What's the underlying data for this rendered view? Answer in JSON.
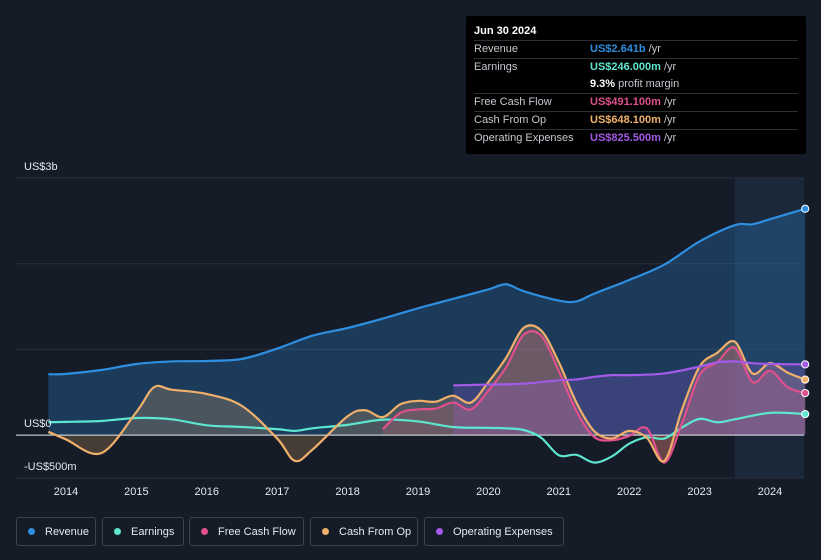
{
  "tooltip": {
    "date": "Jun 30 2024",
    "rows": [
      {
        "label": "Revenue",
        "value": "US$2.641b",
        "unit": "/yr",
        "color": "#2e8fe0"
      },
      {
        "label": "Earnings",
        "value": "US$246.000m",
        "unit": "/yr",
        "color": "#5ee6cf"
      },
      {
        "label": "",
        "value": "9.3%",
        "unit": "profit margin",
        "color": "#ffffff"
      },
      {
        "label": "Free Cash Flow",
        "value": "US$491.100m",
        "unit": "/yr",
        "color": "#e0508c"
      },
      {
        "label": "Cash From Op",
        "value": "US$648.100m",
        "unit": "/yr",
        "color": "#f0b06c"
      },
      {
        "label": "Operating Expenses",
        "value": "US$825.500m",
        "unit": "/yr",
        "color": "#a35ae8"
      }
    ]
  },
  "legend": [
    {
      "label": "Revenue",
      "color": "#2e8fe0"
    },
    {
      "label": "Earnings",
      "color": "#5ee6cf"
    },
    {
      "label": "Free Cash Flow",
      "color": "#e0508c"
    },
    {
      "label": "Cash From Op",
      "color": "#f0b06c"
    },
    {
      "label": "Operating Expenses",
      "color": "#a35ae8"
    }
  ],
  "chart_data": {
    "type": "area",
    "title": "",
    "ylabels": [
      {
        "value": 3000,
        "text": "US$3b"
      },
      {
        "value": 0,
        "text": "US$0"
      },
      {
        "value": -500,
        "text": "-US$500m"
      }
    ],
    "ylim": [
      -500,
      3000
    ],
    "xlim": [
      2013.75,
      2024.5
    ],
    "x_ticks": [
      2014,
      2015,
      2016,
      2017,
      2018,
      2019,
      2020,
      2021,
      2022,
      2023,
      2024
    ],
    "forecast_start": 2023.5,
    "series": [
      {
        "name": "Revenue",
        "color": "#2e8fe0",
        "fill": true,
        "points": [
          [
            2013.75,
            710
          ],
          [
            2014,
            715
          ],
          [
            2014.5,
            760
          ],
          [
            2015,
            830
          ],
          [
            2015.5,
            860
          ],
          [
            2016,
            865
          ],
          [
            2016.5,
            890
          ],
          [
            2017,
            1010
          ],
          [
            2017.5,
            1160
          ],
          [
            2018,
            1250
          ],
          [
            2018.5,
            1360
          ],
          [
            2019,
            1480
          ],
          [
            2019.5,
            1590
          ],
          [
            2020,
            1700
          ],
          [
            2020.25,
            1760
          ],
          [
            2020.5,
            1680
          ],
          [
            2021,
            1570
          ],
          [
            2021.25,
            1560
          ],
          [
            2021.5,
            1650
          ],
          [
            2022,
            1810
          ],
          [
            2022.5,
            1990
          ],
          [
            2023,
            2260
          ],
          [
            2023.5,
            2450
          ],
          [
            2023.75,
            2460
          ],
          [
            2024,
            2520
          ],
          [
            2024.5,
            2641
          ]
        ]
      },
      {
        "name": "Earnings",
        "color": "#5ee6cf",
        "fill": false,
        "points": [
          [
            2013.75,
            150
          ],
          [
            2014,
            155
          ],
          [
            2014.5,
            165
          ],
          [
            2015,
            200
          ],
          [
            2015.5,
            185
          ],
          [
            2016,
            115
          ],
          [
            2016.5,
            95
          ],
          [
            2017,
            70
          ],
          [
            2017.25,
            50
          ],
          [
            2017.5,
            80
          ],
          [
            2018,
            120
          ],
          [
            2018.5,
            180
          ],
          [
            2019,
            160
          ],
          [
            2019.5,
            95
          ],
          [
            2020,
            85
          ],
          [
            2020.25,
            80
          ],
          [
            2020.5,
            60
          ],
          [
            2020.75,
            -30
          ],
          [
            2021,
            -235
          ],
          [
            2021.25,
            -230
          ],
          [
            2021.5,
            -320
          ],
          [
            2021.75,
            -250
          ],
          [
            2022,
            -100
          ],
          [
            2022.25,
            -25
          ],
          [
            2022.5,
            -40
          ],
          [
            2022.75,
            90
          ],
          [
            2023,
            190
          ],
          [
            2023.25,
            150
          ],
          [
            2023.5,
            185
          ],
          [
            2024,
            260
          ],
          [
            2024.5,
            246
          ]
        ]
      },
      {
        "name": "Free Cash Flow",
        "color": "#e0508c",
        "fill": true,
        "points": [
          [
            2018.5,
            70
          ],
          [
            2018.75,
            260
          ],
          [
            2019,
            300
          ],
          [
            2019.25,
            310
          ],
          [
            2019.5,
            380
          ],
          [
            2019.75,
            300
          ],
          [
            2020,
            520
          ],
          [
            2020.25,
            790
          ],
          [
            2020.5,
            1170
          ],
          [
            2020.75,
            1160
          ],
          [
            2021,
            750
          ],
          [
            2021.25,
            280
          ],
          [
            2021.5,
            -20
          ],
          [
            2021.75,
            -60
          ],
          [
            2022,
            -10
          ],
          [
            2022.25,
            80
          ],
          [
            2022.5,
            -320
          ],
          [
            2022.75,
            140
          ],
          [
            2023,
            700
          ],
          [
            2023.25,
            850
          ],
          [
            2023.5,
            1020
          ],
          [
            2023.75,
            620
          ],
          [
            2024,
            750
          ],
          [
            2024.25,
            560
          ],
          [
            2024.5,
            491
          ]
        ]
      },
      {
        "name": "Cash From Op",
        "color": "#f0b06c",
        "fill": true,
        "points": [
          [
            2013.75,
            40
          ],
          [
            2014,
            -50
          ],
          [
            2014.5,
            -210
          ],
          [
            2015,
            270
          ],
          [
            2015.25,
            560
          ],
          [
            2015.5,
            530
          ],
          [
            2016,
            480
          ],
          [
            2016.5,
            340
          ],
          [
            2017,
            -40
          ],
          [
            2017.25,
            -300
          ],
          [
            2017.5,
            -170
          ],
          [
            2018,
            220
          ],
          [
            2018.25,
            290
          ],
          [
            2018.5,
            210
          ],
          [
            2018.75,
            360
          ],
          [
            2019,
            400
          ],
          [
            2019.25,
            390
          ],
          [
            2019.5,
            460
          ],
          [
            2019.75,
            380
          ],
          [
            2020,
            620
          ],
          [
            2020.25,
            900
          ],
          [
            2020.5,
            1250
          ],
          [
            2020.75,
            1220
          ],
          [
            2021,
            850
          ],
          [
            2021.25,
            380
          ],
          [
            2021.5,
            50
          ],
          [
            2021.75,
            -40
          ],
          [
            2022,
            50
          ],
          [
            2022.25,
            -30
          ],
          [
            2022.5,
            -300
          ],
          [
            2022.75,
            300
          ],
          [
            2023,
            800
          ],
          [
            2023.25,
            960
          ],
          [
            2023.5,
            1090
          ],
          [
            2023.75,
            720
          ],
          [
            2024,
            840
          ],
          [
            2024.25,
            730
          ],
          [
            2024.5,
            648
          ]
        ]
      },
      {
        "name": "Operating Expenses",
        "color": "#a35ae8",
        "fill": true,
        "points": [
          [
            2019.5,
            580
          ],
          [
            2020,
            590
          ],
          [
            2020.5,
            600
          ],
          [
            2021,
            640
          ],
          [
            2021.25,
            650
          ],
          [
            2021.5,
            680
          ],
          [
            2021.75,
            700
          ],
          [
            2022,
            700
          ],
          [
            2022.5,
            720
          ],
          [
            2023,
            800
          ],
          [
            2023.25,
            850
          ],
          [
            2023.5,
            860
          ],
          [
            2023.75,
            840
          ],
          [
            2024,
            830
          ],
          [
            2024.5,
            825.5
          ]
        ]
      }
    ]
  }
}
